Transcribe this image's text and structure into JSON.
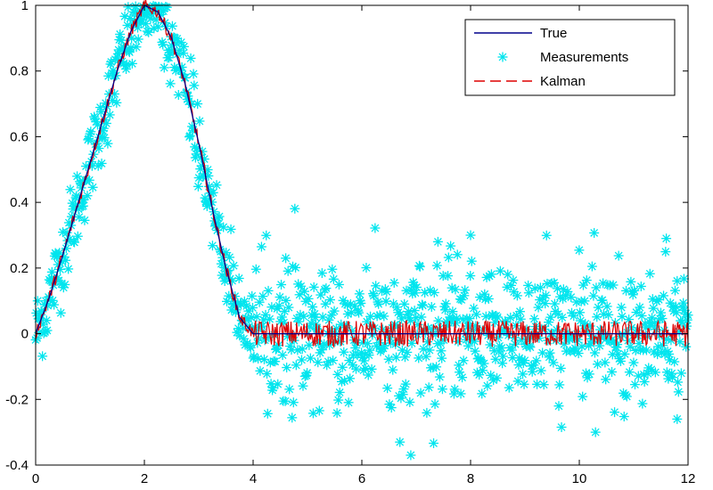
{
  "chart_data": {
    "type": "line",
    "title": "",
    "xlabel": "",
    "ylabel": "",
    "xlim": [
      0,
      12
    ],
    "ylim": [
      -0.4,
      1.0
    ],
    "xticks": [
      0,
      2,
      4,
      6,
      8,
      10,
      12
    ],
    "yticks": [
      1,
      0.8,
      0.6,
      0.4,
      0.2,
      0,
      -0.2,
      -0.4
    ],
    "ytick_labels": [
      "1",
      "0.8",
      "0.6",
      "0.4",
      "0.2",
      "0",
      "-0.2",
      "-0.4"
    ],
    "grid": false,
    "legend_position": "top-right",
    "series": [
      {
        "name": "True",
        "style": "solid",
        "color": "#00008b",
        "points": [
          [
            0,
            0
          ],
          [
            0.25,
            0.11
          ],
          [
            0.5,
            0.24
          ],
          [
            0.75,
            0.38
          ],
          [
            1.0,
            0.52
          ],
          [
            1.25,
            0.66
          ],
          [
            1.5,
            0.8
          ],
          [
            1.75,
            0.92
          ],
          [
            2.0,
            1.0
          ],
          [
            2.25,
            0.98
          ],
          [
            2.5,
            0.9
          ],
          [
            2.75,
            0.76
          ],
          [
            3.0,
            0.58
          ],
          [
            3.25,
            0.38
          ],
          [
            3.5,
            0.2
          ],
          [
            3.75,
            0.05
          ],
          [
            4.0,
            0.0
          ],
          [
            12.0,
            0.0
          ]
        ]
      },
      {
        "name": "Measurements",
        "style": "asterisk-markers",
        "color": "#00e5ee",
        "note_noise_sd": 0.1,
        "count": 960
      },
      {
        "name": "Kalman",
        "style": "dashed",
        "color": "#dd0000",
        "noise_amplitude": 0.04
      }
    ],
    "outliers": [
      [
        4.6,
        0.23
      ],
      [
        6.7,
        -0.33
      ],
      [
        6.9,
        -0.37
      ],
      [
        7.4,
        0.28
      ],
      [
        8.0,
        0.3
      ],
      [
        11.6,
        0.29
      ],
      [
        11.8,
        -0.26
      ]
    ]
  }
}
